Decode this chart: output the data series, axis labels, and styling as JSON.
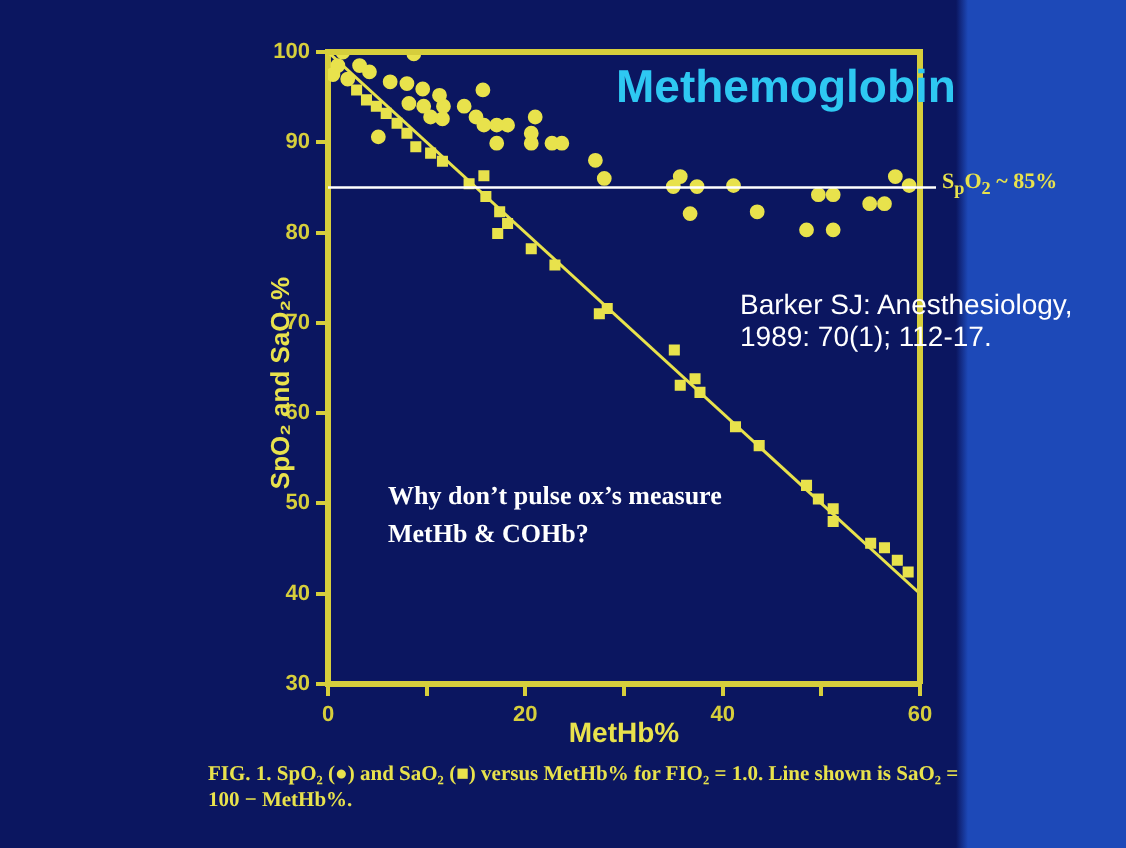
{
  "chart_data": {
    "type": "scatter",
    "title": "Methemoglobin",
    "xlabel": "MetHb%",
    "ylabel": "SpO₂ and SaO₂%",
    "xlim": [
      0,
      60
    ],
    "ylim": [
      30,
      100
    ],
    "xticks": [
      0,
      {
        "value": 10,
        "label": null
      },
      20,
      {
        "value": 30,
        "label": null
      },
      40,
      {
        "value": 50,
        "label": null
      },
      60
    ],
    "yticks": [
      30,
      40,
      50,
      60,
      70,
      80,
      90,
      100
    ],
    "grid": false,
    "legend": false,
    "series": [
      {
        "marker": "circle",
        "color": "#e8e24c",
        "x": [
          1.5,
          8.7,
          3.2,
          4.2,
          6.3,
          8.0,
          9.6,
          11.3,
          15.7,
          8.2,
          9.7,
          11.7,
          10.4,
          11.6,
          13.8,
          15.0,
          15.8,
          17.1,
          18.2,
          21.0,
          20.6,
          20.6,
          17.1,
          22.7,
          23.7,
          27.1,
          28.0,
          5.1,
          1.0,
          0.5,
          2.0,
          35.7,
          35.0,
          37.4,
          36.7,
          41.1,
          43.5,
          49.7,
          51.2,
          48.5,
          51.2,
          54.9,
          56.4,
          57.5,
          58.9
        ],
        "values": [
          100,
          99.8,
          98.5,
          97.8,
          96.7,
          96.5,
          95.9,
          95.2,
          95.8,
          94.3,
          94.0,
          94.0,
          92.8,
          92.6,
          94.0,
          92.8,
          91.9,
          91.9,
          91.9,
          92.8,
          91.0,
          89.9,
          89.9,
          89.9,
          89.9,
          88.0,
          86.0,
          90.6,
          98.5,
          97.5,
          97.0,
          86.2,
          85.1,
          85.1,
          82.1,
          85.2,
          82.3,
          84.2,
          84.2,
          80.3,
          80.3,
          83.2,
          83.2,
          86.2,
          85.2
        ]
      },
      {
        "marker": "square",
        "color": "#e8e24c",
        "x": [
          2.9,
          3.9,
          4.9,
          5.9,
          7.0,
          8.0,
          8.9,
          10.4,
          11.6,
          14.3,
          15.8,
          16.0,
          17.4,
          18.2,
          17.2,
          20.6,
          23.0,
          27.5,
          28.3,
          35.1,
          35.7,
          37.2,
          37.7,
          41.3,
          43.7,
          48.5,
          49.7,
          51.2,
          51.2,
          55.0,
          56.4,
          57.7,
          58.8
        ],
        "values": [
          95.8,
          94.7,
          94.0,
          93.2,
          92.1,
          91.0,
          89.5,
          88.8,
          87.9,
          85.4,
          86.3,
          84.0,
          82.3,
          81.0,
          79.9,
          78.2,
          76.4,
          71.0,
          71.6,
          67.0,
          63.1,
          63.8,
          62.3,
          58.5,
          56.4,
          52.0,
          50.5,
          49.4,
          48.0,
          45.6,
          45.1,
          43.7,
          42.4
        ]
      },
      {
        "type": "line",
        "color": "#e8e24c",
        "marker": "none",
        "x": [
          0,
          60
        ],
        "values": [
          100,
          40
        ]
      }
    ],
    "ref_lines": [
      {
        "axis": "y",
        "value": 85,
        "label": "S$_{p}$O$_{2}$ ~ 85%",
        "color": "#ffffff"
      }
    ],
    "annotations": [
      "Barker SJ: Anesthesiology, 1989: 70(1); 112-17.",
      "Why don’t pulse ox’s measure MetHb & COHb?",
      "FIG. 1. SpO₂ (●) and SaO₂ (■) versus MetHb% for FIO₂ = 1.0. Line shown is SaO₂ = 100 − MetHb%."
    ]
  }
}
